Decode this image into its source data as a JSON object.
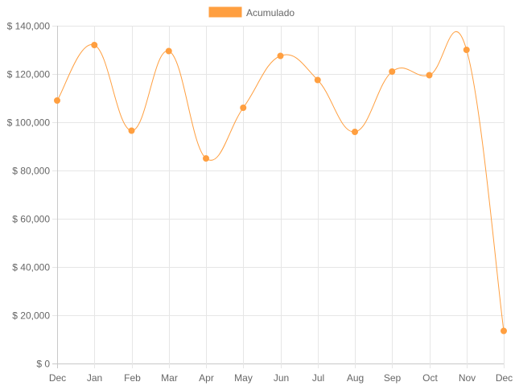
{
  "chart_data": {
    "type": "line",
    "title": "",
    "xlabel": "",
    "ylabel": "",
    "categories": [
      "Dec",
      "Jan",
      "Feb",
      "Mar",
      "Apr",
      "May",
      "Jun",
      "Jul",
      "Aug",
      "Sep",
      "Oct",
      "Nov",
      "Dec"
    ],
    "series": [
      {
        "name": "Acumulado",
        "color": "#ff9f40",
        "values": [
          109000,
          132000,
          96500,
          129500,
          85000,
          106000,
          127500,
          117500,
          96000,
          121000,
          119500,
          130000,
          13500
        ]
      }
    ],
    "ylim": [
      0,
      140000
    ],
    "yticks": [
      0,
      20000,
      40000,
      60000,
      80000,
      100000,
      120000,
      140000
    ],
    "ytick_labels": [
      "$ 0",
      "$ 20,000",
      "$ 40,000",
      "$ 60,000",
      "$ 80,000",
      "$ 100,000",
      "$ 120,000",
      "$ 140,000"
    ],
    "grid": true,
    "legend_position": "top-center",
    "smooth": true
  }
}
